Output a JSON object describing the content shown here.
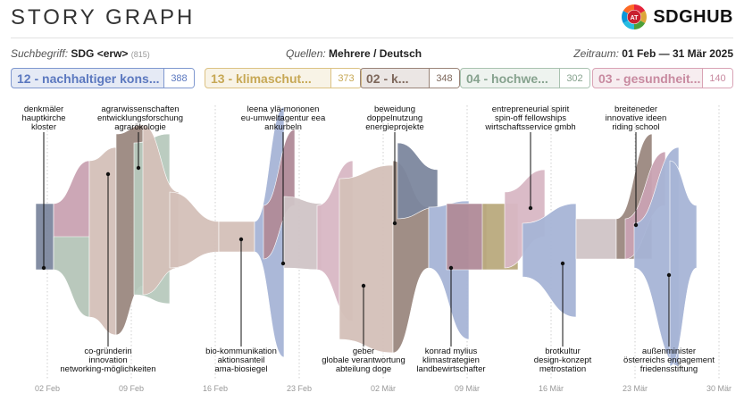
{
  "header": {
    "title": "STORY GRAPH",
    "logo_badge": "AT",
    "logo_text": "SDGHUB"
  },
  "meta": {
    "search_label": "Suchbegriff:",
    "search_value": "SDG <erw>",
    "search_count": "(815)",
    "sources_label": "Quellen:",
    "sources_value": "Mehrere / Deutsch",
    "period_label": "Zeitraum:",
    "period_value": "01 Feb — 31 Mär 2025"
  },
  "tags": [
    {
      "label": "12 - nachhaltiger kons...",
      "count": "388",
      "color": "#7f98cf",
      "text_color": "#5b78bf"
    },
    {
      "label": "13 - klimaschut...",
      "count": "373",
      "color": "#dcc283",
      "text_color": "#c7a855"
    },
    {
      "label": "02 - k...",
      "count": "348",
      "color": "#9a8478",
      "text_color": "#7d675b"
    },
    {
      "label": "04 - hochwe...",
      "count": "302",
      "color": "#a9c2b0",
      "text_color": "#86a28e"
    },
    {
      "label": "03 - gesundheit...",
      "count": "140",
      "color": "#d9a3b5",
      "text_color": "#c88aa0"
    }
  ],
  "chart_data": {
    "type": "area",
    "xlabel": "",
    "ylabel": "",
    "x_ticks": [
      "02 Feb",
      "09 Feb",
      "16 Feb",
      "23 Feb",
      "02 Mär",
      "09 Mär",
      "16 Mär",
      "23 Mär",
      "30 Mär"
    ],
    "series_colors": {
      "mauve": "#b08a98",
      "taupe": "#d4c0b8",
      "brown": "#9b8880",
      "sage": "#b7c9bd",
      "blue": "#a6b4d6",
      "slate": "#7c879e",
      "gold": "#b9aa7d",
      "pink": "#d8b7c4",
      "rose": "#c9a2b2",
      "silver": "#d0c4c6"
    },
    "annotations": [
      {
        "lines": [
          "denkmäler",
          "hauptkirche",
          "kloster"
        ],
        "position": "top"
      },
      {
        "lines": [
          "agrarwissenschaften",
          "entwicklungsforschung",
          "agrarökologie"
        ],
        "position": "top"
      },
      {
        "lines": [
          "leena ylä-mononen",
          "eu-umweltagentur eea",
          "ankurbeln"
        ],
        "position": "top"
      },
      {
        "lines": [
          "beweidung",
          "doppelnutzung",
          "energieprojekte"
        ],
        "position": "top"
      },
      {
        "lines": [
          "entrepreneurial spirit",
          "spin-off fellowships",
          "wirtschaftsservice gmbh"
        ],
        "position": "top"
      },
      {
        "lines": [
          "breiteneder",
          "innovative ideen",
          "riding school"
        ],
        "position": "top"
      },
      {
        "lines": [
          "co-gründerin",
          "innovation",
          "networking-möglichkeiten"
        ],
        "position": "bottom"
      },
      {
        "lines": [
          "bio-kommunikation",
          "aktionsanteil",
          "ama-biosiegel"
        ],
        "position": "bottom"
      },
      {
        "lines": [
          "geber",
          "globale verantwortung",
          "abteilung doge"
        ],
        "position": "bottom"
      },
      {
        "lines": [
          "konrad mylius",
          "klimastrategien",
          "landbewirtschafter"
        ],
        "position": "bottom"
      },
      {
        "lines": [
          "brotkultur",
          "design-konzept",
          "metrostation"
        ],
        "position": "bottom"
      },
      {
        "lines": [
          "außenminister",
          "österreichs engagement",
          "friedensstiftung"
        ],
        "position": "bottom"
      }
    ]
  }
}
